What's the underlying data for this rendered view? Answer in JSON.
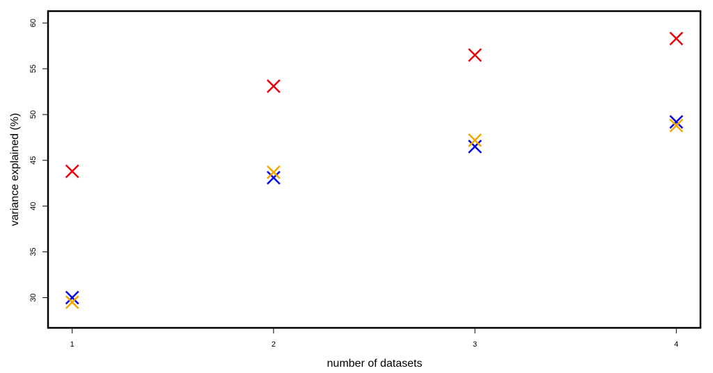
{
  "chart_data": {
    "type": "scatter",
    "title": "",
    "xlabel": "number of datasets",
    "ylabel": "variance explained (%)",
    "x": [
      1,
      2,
      3,
      4
    ],
    "xticks": [
      "1",
      "2",
      "3",
      "4"
    ],
    "yticks": [
      "30",
      "35",
      "40",
      "45",
      "50",
      "55",
      "60"
    ],
    "xlim": [
      0.88,
      4.12
    ],
    "ylim": [
      26.7,
      61.3
    ],
    "grid": false,
    "legend": "none",
    "marker": "x",
    "series": [
      {
        "color": "#e8000b",
        "values": [
          43.8,
          53.1,
          56.5,
          58.3
        ]
      },
      {
        "color": "#0000e0",
        "values": [
          30.0,
          43.1,
          46.5,
          49.2
        ]
      },
      {
        "color": "#f5a700",
        "values": [
          29.5,
          43.7,
          47.2,
          48.8
        ]
      }
    ]
  }
}
